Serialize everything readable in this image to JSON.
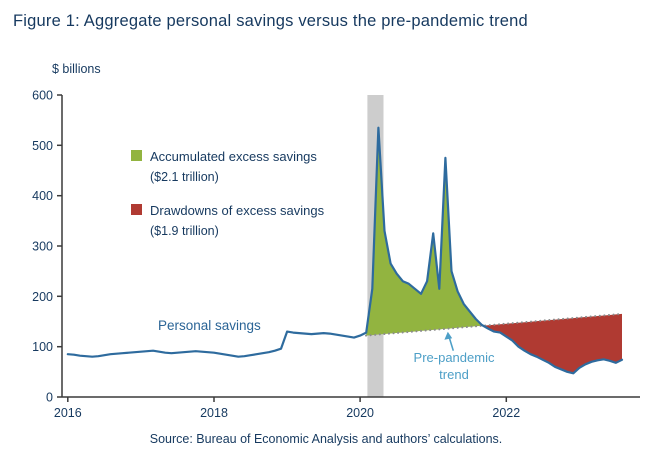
{
  "figure": {
    "title": "Figure 1: Aggregate personal savings versus the pre-pandemic trend",
    "y_axis_unit": "$ billions",
    "source": "Source: Bureau of Economic Analysis and authors’ calculations."
  },
  "legend": [
    {
      "label": "Accumulated excess savings",
      "sublabel": "($2.1 trillion)",
      "color": "#92b440"
    },
    {
      "label": "Drawdowns of excess savings",
      "sublabel": "($1.9 trillion)",
      "color": "#b03a32"
    }
  ],
  "annotations": {
    "personal_savings": "Personal savings",
    "pre_pandemic_line1": "Pre-pandemic",
    "pre_pandemic_line2": "trend"
  },
  "colors": {
    "text": "#16395f",
    "line": "#2e6b9e",
    "excess_fill": "#92b440",
    "drawdown_fill": "#b03a32",
    "trend_line": "#8c8c8c",
    "recession_band": "#cdcdcd",
    "axis": "#3a3a3a",
    "annotation_light": "#4d9fc7"
  },
  "chart_data": {
    "type": "line",
    "title": "Figure 1: Aggregate personal savings versus the pre-pandemic trend",
    "ylabel": "$ billions",
    "xlabel": "",
    "ylim": [
      0,
      600
    ],
    "xlim": [
      2015.92,
      2023.83
    ],
    "y_ticks": [
      0,
      100,
      200,
      300,
      400,
      500,
      600
    ],
    "x_ticks": [
      2016,
      2018,
      2020,
      2022
    ],
    "grid": false,
    "legend_position": "upper-left-inside",
    "recession_band": {
      "x_start": 2020.1,
      "x_end": 2020.32
    },
    "excess_savings_trillions": 2.1,
    "drawdowns_trillions": 1.9,
    "series": {
      "personal_savings": {
        "name": "Personal savings",
        "frequency": "monthly",
        "start": "2016-01",
        "units": "$ billions",
        "values": [
          85,
          84,
          82,
          81,
          80,
          81,
          83,
          85,
          86,
          87,
          88,
          89,
          90,
          91,
          92,
          90,
          88,
          87,
          88,
          89,
          90,
          91,
          90,
          89,
          88,
          86,
          84,
          82,
          80,
          81,
          83,
          85,
          87,
          89,
          92,
          96,
          130,
          128,
          127,
          126,
          125,
          126,
          127,
          126,
          124,
          122,
          120,
          118,
          122,
          128,
          215,
          535,
          330,
          265,
          245,
          230,
          225,
          215,
          205,
          230,
          325,
          215,
          475,
          250,
          210,
          185,
          170,
          155,
          143,
          136,
          130,
          128,
          120,
          112,
          100,
          92,
          85,
          80,
          74,
          68,
          60,
          55,
          50,
          47,
          58,
          65,
          70,
          73,
          75,
          72,
          68,
          74
        ]
      },
      "pre_pandemic_trend": {
        "name": "Pre-pandemic trend",
        "style": "dotted",
        "x_start": 2020.08,
        "y_start": 122,
        "x_end": 2023.58,
        "y_end": 165
      }
    }
  }
}
